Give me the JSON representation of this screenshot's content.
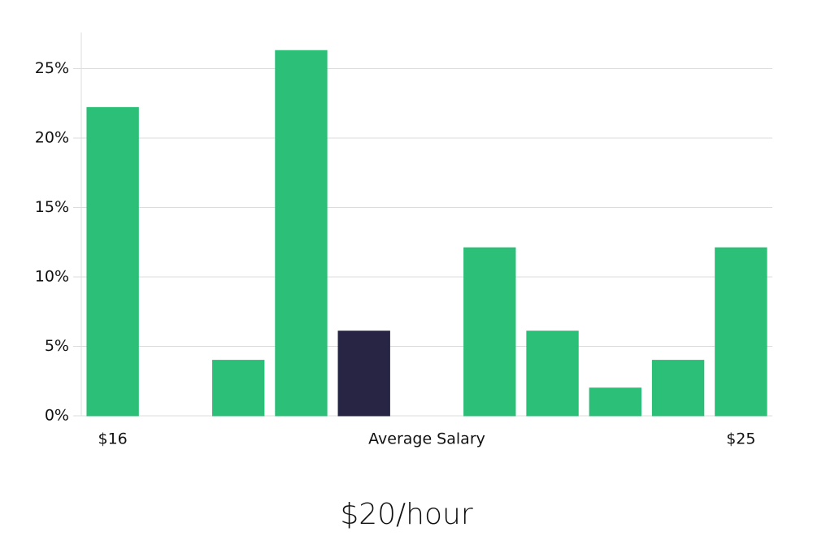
{
  "chart_data": {
    "type": "bar",
    "title": "$20/hour",
    "x_label": "Average Salary",
    "categories": [
      "$16",
      null,
      null,
      null,
      null,
      null,
      null,
      null,
      null,
      null,
      "$25"
    ],
    "values": [
      22.2,
      0,
      4,
      26.3,
      6.1,
      0,
      12.1,
      6.1,
      2,
      4,
      12.1
    ],
    "colors": [
      "#2bbf77",
      "#2bbf77",
      "#2bbf77",
      "#2bbf77",
      "#272444",
      "#2bbf77",
      "#2bbf77",
      "#2bbf77",
      "#2bbf77",
      "#2bbf77",
      "#2bbf77"
    ],
    "ylim": [
      0,
      27.6
    ],
    "yticks": [
      {
        "value": 0,
        "label": "0%"
      },
      {
        "value": 5,
        "label": "5%"
      },
      {
        "value": 10,
        "label": "10%"
      },
      {
        "value": 15,
        "label": "15%"
      },
      {
        "value": 20,
        "label": "20%"
      },
      {
        "value": 25,
        "label": "25%"
      }
    ],
    "grid": true
  }
}
